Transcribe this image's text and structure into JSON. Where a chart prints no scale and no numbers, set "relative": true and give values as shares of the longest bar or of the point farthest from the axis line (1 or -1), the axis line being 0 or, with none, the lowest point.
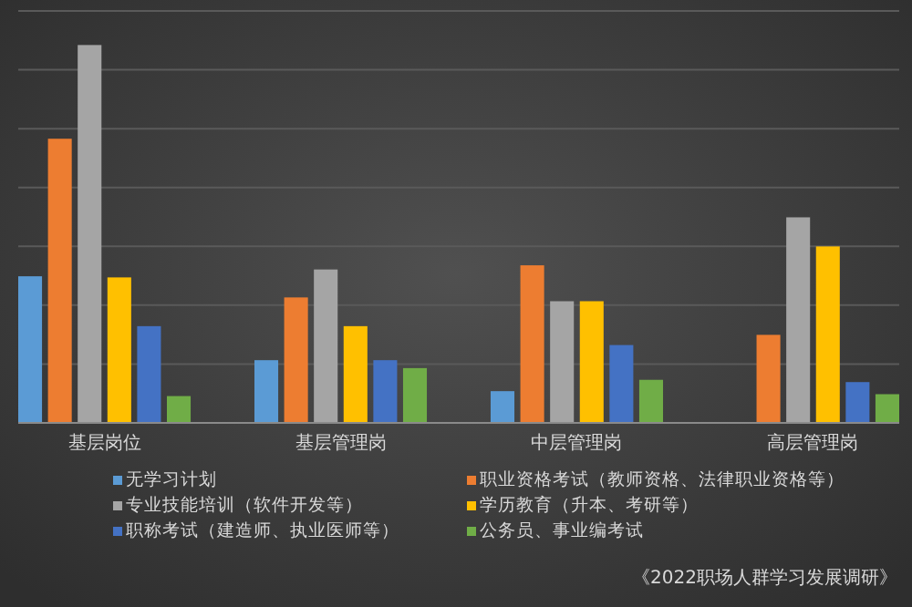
{
  "chart_data": {
    "type": "bar",
    "relative": true,
    "grid": true,
    "legend": "bottom",
    "categories": [
      "基层岗位",
      "基层管理岗",
      "中层管理岗",
      "高层管理岗"
    ],
    "series": [
      {
        "name": "无学习计划",
        "color": "#5b9bd5",
        "values": [
          0.388,
          0.166,
          0.084,
          null
        ]
      },
      {
        "name": "职业资格考试（教师资格、法律职业资格等）",
        "color": "#ed7d31",
        "values": [
          0.752,
          0.332,
          0.417,
          0.233
        ]
      },
      {
        "name": "专业技能培训（软件开发等）",
        "color": "#a5a5a5",
        "values": [
          1,
          0.406,
          0.322,
          0.544
        ]
      },
      {
        "name": "学历教育（升本、考研等）",
        "color": "#ffc000",
        "values": [
          0.385,
          0.256,
          0.322,
          0.467
        ]
      },
      {
        "name": "职称考试（建造师、执业医师等）",
        "color": "#4472c4",
        "values": [
          0.256,
          0.166,
          0.206,
          0.108
        ]
      },
      {
        "name": "公务员、事业编考试",
        "color": "#70ad47",
        "values": [
          0.071,
          0.145,
          0.114,
          0.076
        ]
      }
    ],
    "annotations": [
      "《2022职场人群学习发展调研》"
    ]
  }
}
